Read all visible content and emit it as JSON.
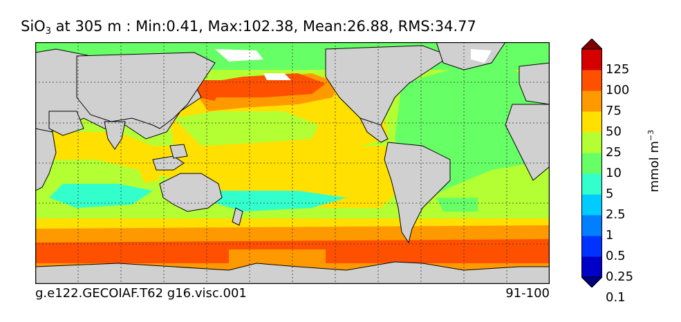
{
  "title": {
    "species_main": "SiO",
    "species_sub": "3",
    "rest": " at 305 m : Min:0.41, Max:102.38, Mean:26.88, RMS:34.77"
  },
  "footer": {
    "case_name": "g.e122.GECOIAF.T62 g16.visc.001",
    "years": "91-100"
  },
  "colorbar": {
    "units_main": "mmol m",
    "units_sup": "−3",
    "labels": [
      "125",
      "100",
      "75",
      "50",
      "25",
      "10",
      "5",
      "2.5",
      "1",
      "0.5",
      "0.25",
      "0.1"
    ],
    "colors": [
      "#00007f",
      "#0000c8",
      "#0033ff",
      "#0080ff",
      "#00ccff",
      "#33ffcc",
      "#66ff66",
      "#b3ff33",
      "#ffe000",
      "#ff9900",
      "#ff5000",
      "#d40000",
      "#7f0000"
    ]
  },
  "map_colors": {
    "land": "#d0d0d0",
    "low_5_10": "#66ff66",
    "mid_10_25": "#b3ff33",
    "yel_25_50": "#ffe000",
    "orange_50_75": "#ff9900",
    "red_75_100": "#ff5000",
    "cyan_2_5_5": "#33ffcc",
    "crimson_100_125": "#d40000"
  }
}
